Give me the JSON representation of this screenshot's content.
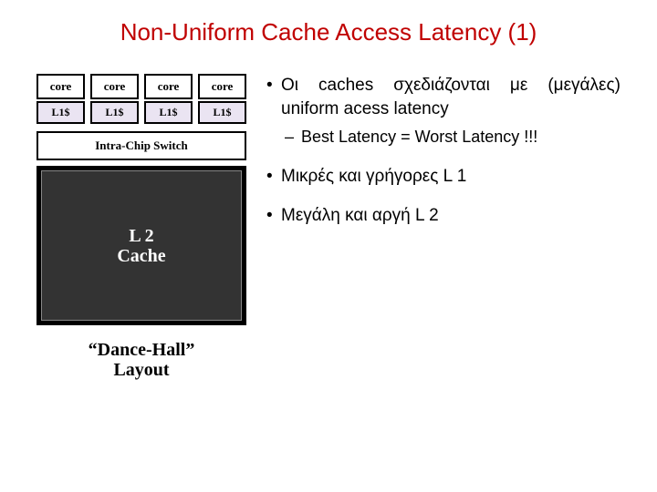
{
  "title": {
    "text": "Non-Uniform Cache Access Latency (1)",
    "color": "#c00000",
    "fontsize": 26
  },
  "diagram": {
    "cores": [
      "core",
      "core",
      "core",
      "core"
    ],
    "l1": [
      "L1$",
      "L1$",
      "L1$",
      "L1$"
    ],
    "switch": "Intra-Chip Switch",
    "l2": "L 2\nCache",
    "caption": "“Dance-Hall”\nLayout",
    "colors": {
      "core_bg": "#ffffff",
      "l1_bg": "#eae4f2",
      "switch_bg": "#ffffff",
      "l2_bg": "#333333",
      "l2_text": "#ffffff",
      "border": "#000000"
    },
    "font": "Times New Roman"
  },
  "bullets": {
    "b1": "Οι caches σχεδιάζονται με (μεγάλες) uniform acess latency",
    "b1_sub": "Best Latency = Worst Latency !!!",
    "b2": "Μικρές και γρήγορες L 1",
    "b3": "Μεγάλη και αργή L 2",
    "color": "#000000",
    "fontsize": 19
  }
}
